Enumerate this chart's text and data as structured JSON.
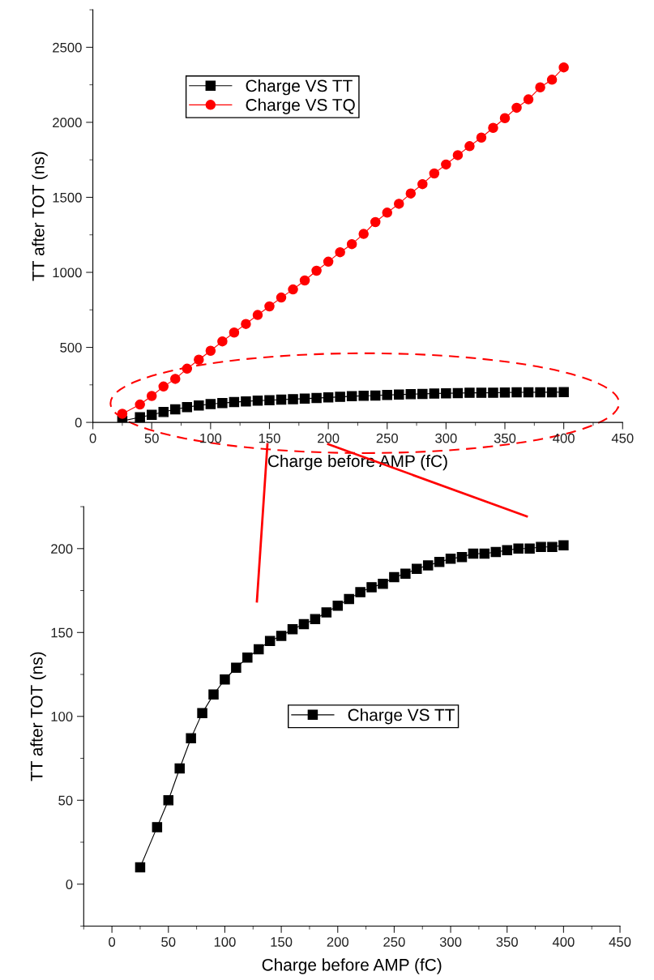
{
  "chart_data": [
    {
      "type": "line",
      "xlabel": "Charge before AMP (fC)",
      "ylabel": "TT after TOT (ns)",
      "xlim": [
        0,
        450
      ],
      "ylim": [
        0,
        2750
      ],
      "xticks": [
        0,
        50,
        100,
        150,
        200,
        250,
        300,
        350,
        400,
        450
      ],
      "yticks": [
        0,
        500,
        1000,
        1500,
        2000,
        2500
      ],
      "legend": "top left",
      "grid": false,
      "line_style": "solid",
      "x": [
        25,
        40,
        50,
        60,
        70,
        80,
        90,
        100,
        110,
        120,
        130,
        140,
        150,
        160,
        170,
        180,
        190,
        200,
        210,
        220,
        230,
        240,
        250,
        260,
        270,
        280,
        290,
        300,
        310,
        320,
        330,
        340,
        350,
        360,
        370,
        380,
        390,
        400
      ],
      "series": [
        {
          "name": "Charge VS TT",
          "color": "#000000",
          "marker": "square",
          "values": [
            10,
            34,
            50,
            69,
            87,
            102,
            113,
            122,
            129,
            135,
            140,
            145,
            148,
            152,
            155,
            158,
            162,
            166,
            170,
            174,
            177,
            179,
            183,
            185,
            188,
            190,
            192,
            194,
            195,
            197,
            197,
            198,
            199,
            200,
            200,
            201,
            201,
            202
          ]
        },
        {
          "name": "Charge VS TQ",
          "color": "#ff0000",
          "marker": "circle",
          "values": [
            57,
            119,
            176,
            239,
            290,
            358,
            418,
            477,
            540,
            599,
            656,
            716,
            773,
            832,
            886,
            946,
            1011,
            1071,
            1134,
            1188,
            1256,
            1335,
            1398,
            1457,
            1526,
            1588,
            1659,
            1719,
            1781,
            1841,
            1898,
            1963,
            2028,
            2097,
            2153,
            2233,
            2284,
            2366
          ]
        }
      ]
    },
    {
      "type": "line",
      "xlabel": "Charge before AMP (fC)",
      "ylabel": "TT after TOT (ns)",
      "xlim": [
        -25,
        450
      ],
      "ylim": [
        -25,
        225
      ],
      "xticks": [
        0,
        50,
        100,
        150,
        200,
        250,
        300,
        350,
        400,
        450
      ],
      "yticks": [
        0,
        50,
        100,
        150,
        200
      ],
      "legend": "center",
      "grid": false,
      "line_style": "solid",
      "x": [
        25,
        40,
        50,
        60,
        70,
        80,
        90,
        100,
        110,
        120,
        130,
        140,
        150,
        160,
        170,
        180,
        190,
        200,
        210,
        220,
        230,
        240,
        250,
        260,
        270,
        280,
        290,
        300,
        310,
        320,
        330,
        340,
        350,
        360,
        370,
        380,
        390,
        400
      ],
      "series": [
        {
          "name": "Charge VS TT",
          "color": "#000000",
          "marker": "square",
          "values": [
            10,
            34,
            50,
            69,
            87,
            102,
            113,
            122,
            129,
            135,
            140,
            145,
            148,
            152,
            155,
            158,
            162,
            166,
            170,
            174,
            177,
            179,
            183,
            185,
            188,
            190,
            192,
            194,
            195,
            197,
            197,
            198,
            199,
            200,
            200,
            201,
            201,
            202
          ]
        }
      ]
    }
  ]
}
